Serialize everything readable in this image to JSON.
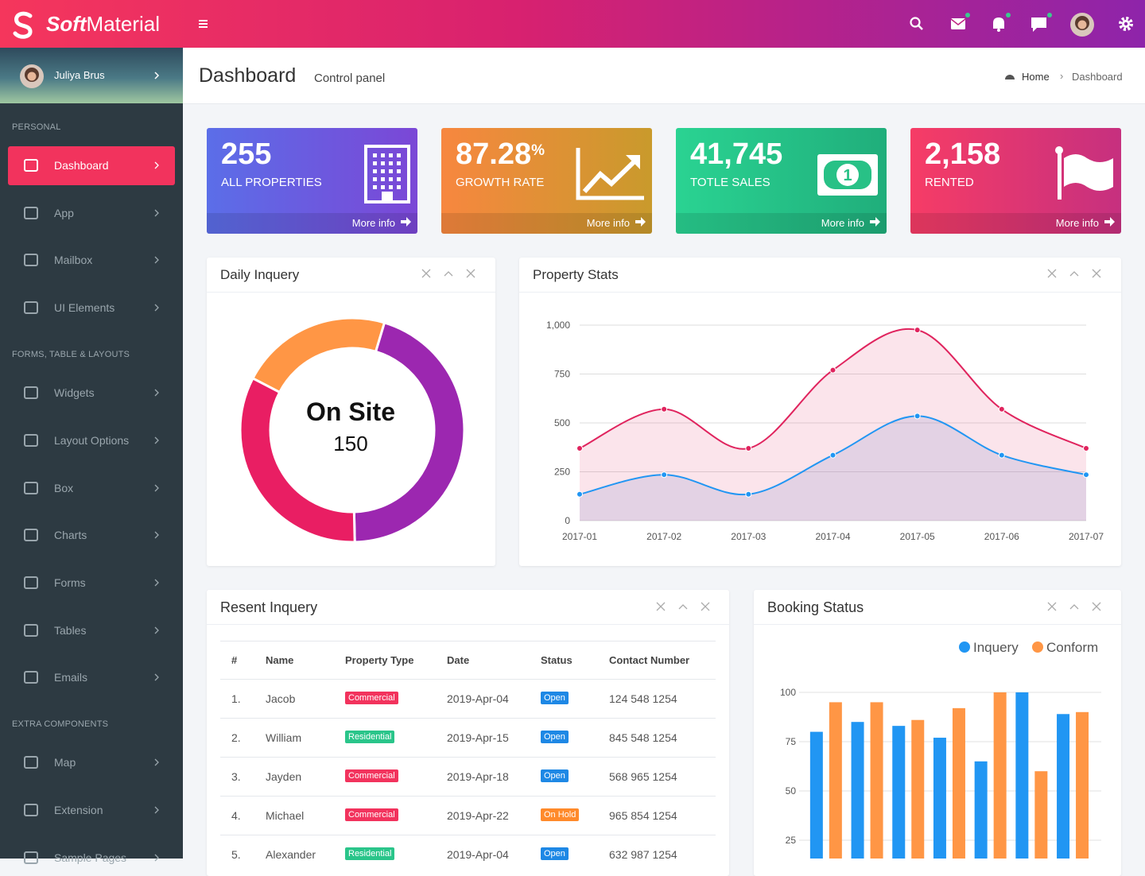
{
  "brand": {
    "bold": "Soft",
    "rest": "Material"
  },
  "user": {
    "name": "Juliya Brus"
  },
  "sidebar": {
    "sections": [
      {
        "title": "PERSONAL",
        "items": [
          "Dashboard",
          "App",
          "Mailbox",
          "UI Elements"
        ]
      },
      {
        "title": "FORMS, TABLE & LAYOUTS",
        "items": [
          "Widgets",
          "Layout Options",
          "Box",
          "Charts",
          "Forms",
          "Tables",
          "Emails"
        ]
      },
      {
        "title": "EXTRA COMPONENTS",
        "items": [
          "Map",
          "Extension",
          "Sample Pages"
        ]
      }
    ],
    "active": "Dashboard"
  },
  "header": {
    "title": "Dashboard",
    "subtitle": "Control panel",
    "breadcrumb": [
      "Home",
      "Dashboard"
    ]
  },
  "stats": [
    {
      "value": "255",
      "label": "ALL PROPERTIES",
      "link": "More info",
      "colors": [
        "#5b6ee8",
        "#7b47d6"
      ]
    },
    {
      "value": "87.28",
      "unit": "%",
      "label": "GROWTH RATE",
      "link": "More info",
      "colors": [
        "#f7873f",
        "#c99a2c"
      ]
    },
    {
      "value": "41,745",
      "label": "TOTLE SALES",
      "link": "More info",
      "colors": [
        "#2ad392",
        "#20ae7b"
      ]
    },
    {
      "value": "2,158",
      "label": "RENTED",
      "link": "More info",
      "colors": [
        "#f63c66",
        "#c6307f"
      ]
    }
  ],
  "daily_inquery": {
    "title": "Daily Inquery",
    "chart": {
      "type": "doughnut",
      "center_title": "On Site",
      "center_value": 150,
      "values": [
        22,
        45,
        33
      ],
      "colors": [
        "#ff9645",
        "#9c27b0",
        "#e91e63"
      ]
    }
  },
  "property_stats": {
    "title": "Property Stats",
    "chart": {
      "type": "area",
      "categories": [
        "2017-01",
        "2017-02",
        "2017-03",
        "2017-04",
        "2017-05",
        "2017-06",
        "2017-07"
      ],
      "series": [
        {
          "color": "#e0245e",
          "fill": "rgba(224,36,94,0.12)",
          "values": [
            370,
            570,
            370,
            770,
            975,
            570,
            370
          ]
        },
        {
          "color": "#2196f3",
          "fill": "rgba(120,130,200,0.18)",
          "values": [
            135,
            235,
            135,
            335,
            535,
            335,
            235
          ]
        }
      ],
      "ylim": [
        0,
        1000
      ],
      "yticks": [
        0,
        250,
        500,
        750,
        {
          "value": 1000,
          "label": "1,000"
        }
      ],
      "grid": true
    }
  },
  "table": {
    "title": "Resent Inquery",
    "columns": [
      "#",
      "Name",
      "Property Type",
      "Date",
      "Status",
      "Contact Number"
    ],
    "rows": [
      [
        "1.",
        "Jacob",
        "Commercial",
        "2019-Apr-04",
        "Open",
        "124 548 1254"
      ],
      [
        "2.",
        "William",
        "Residential",
        "2019-Apr-15",
        "Open",
        "845 548 1254"
      ],
      [
        "3.",
        "Jayden",
        "Commercial",
        "2019-Apr-18",
        "Open",
        "568 965 1254"
      ],
      [
        "4.",
        "Michael",
        "Commercial",
        "2019-Apr-22",
        "On Hold",
        "965 854 1254"
      ],
      [
        "5.",
        "Alexander",
        "Residential",
        "2019-Apr-04",
        "Open",
        "632 987 1254"
      ]
    ],
    "badge_colors": {
      "Commercial": "#f2335d",
      "Residential": "#2ac58a",
      "Open": "#1e88e5",
      "On Hold": "#ff8a2b"
    }
  },
  "booking_status": {
    "title": "Booking Status",
    "chart": {
      "type": "bar",
      "series": [
        {
          "name": "Inquery",
          "color": "#2196f3",
          "values": [
            80,
            85,
            83,
            77,
            65,
            100,
            89
          ]
        },
        {
          "name": "Conform",
          "color": "#ff9645",
          "values": [
            95,
            95,
            86,
            92,
            100,
            60,
            90
          ]
        }
      ],
      "ylim": [
        0,
        100
      ],
      "yticks": [
        25,
        50,
        75,
        100
      ],
      "grid": true
    }
  }
}
